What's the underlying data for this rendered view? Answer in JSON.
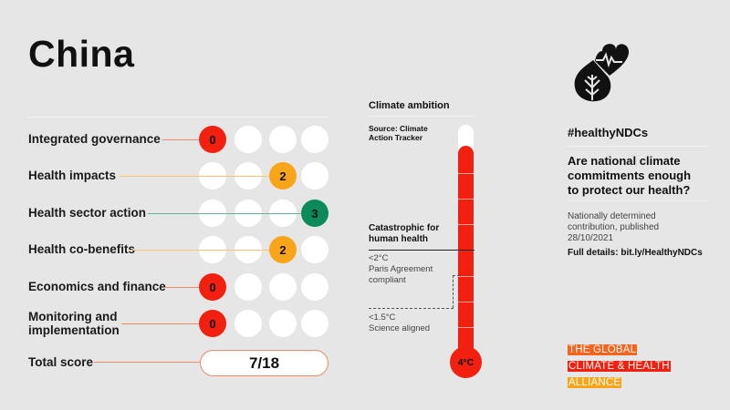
{
  "header": {
    "country": "China"
  },
  "scorecard": {
    "rows": [
      {
        "label": "Integrated governance",
        "score": "0",
        "position": 0,
        "color": "#f2200f",
        "connector_color": "#f08a6a"
      },
      {
        "label": "Health impacts",
        "score": "2",
        "position": 2,
        "color": "#f9a51a",
        "connector_color": "#f9c46a"
      },
      {
        "label": "Health sector action",
        "score": "3",
        "position": 3,
        "color": "#0c8a5a",
        "connector_color": "#5ab894"
      },
      {
        "label": "Health co-benefits",
        "score": "2",
        "position": 2,
        "color": "#f9a51a",
        "connector_color": "#f9c46a"
      },
      {
        "label": "Economics and finance",
        "score": "0",
        "position": 0,
        "color": "#f2200f",
        "connector_color": "#f08a6a"
      },
      {
        "label_line1": "Monitoring and",
        "label_line2": "implementation",
        "score": "0",
        "position": 0,
        "color": "#f2200f",
        "connector_color": "#f08a6a"
      }
    ],
    "total_label": "Total score",
    "total_value": "7/18"
  },
  "climate": {
    "title": "Climate ambition",
    "source_line1": "Source: Climate",
    "source_line2": "Action Tracker",
    "catastrophic_line1": "Catastrophic for",
    "catastrophic_line2": "human health",
    "paris_line1": "<2°C",
    "paris_line2": "Paris Agreement",
    "paris_line3": "compliant",
    "science_line1": "<1.5°C",
    "science_line2": "Science aligned",
    "thermometer_value": "4°C",
    "fill_color": "#f2200f"
  },
  "sidebar": {
    "icon": "heart-leaf-icon",
    "hashtag": "#healthyNDCs",
    "question_line1": "Are national climate",
    "question_line2": "commitments enough",
    "question_line3": "to protect our health?",
    "published_line1": "Nationally determined",
    "published_line2": "contribution, published",
    "published_line3": "28/10/2021",
    "details": "Full details: bit.ly/HealthyNDCs"
  },
  "logo": {
    "line1": "THE GLOBAL",
    "line2": "CLIMATE & HEALTH",
    "line3": "ALLIANCE",
    "colors": [
      "#f5631c",
      "#f2200f",
      "#f9a51a"
    ]
  }
}
